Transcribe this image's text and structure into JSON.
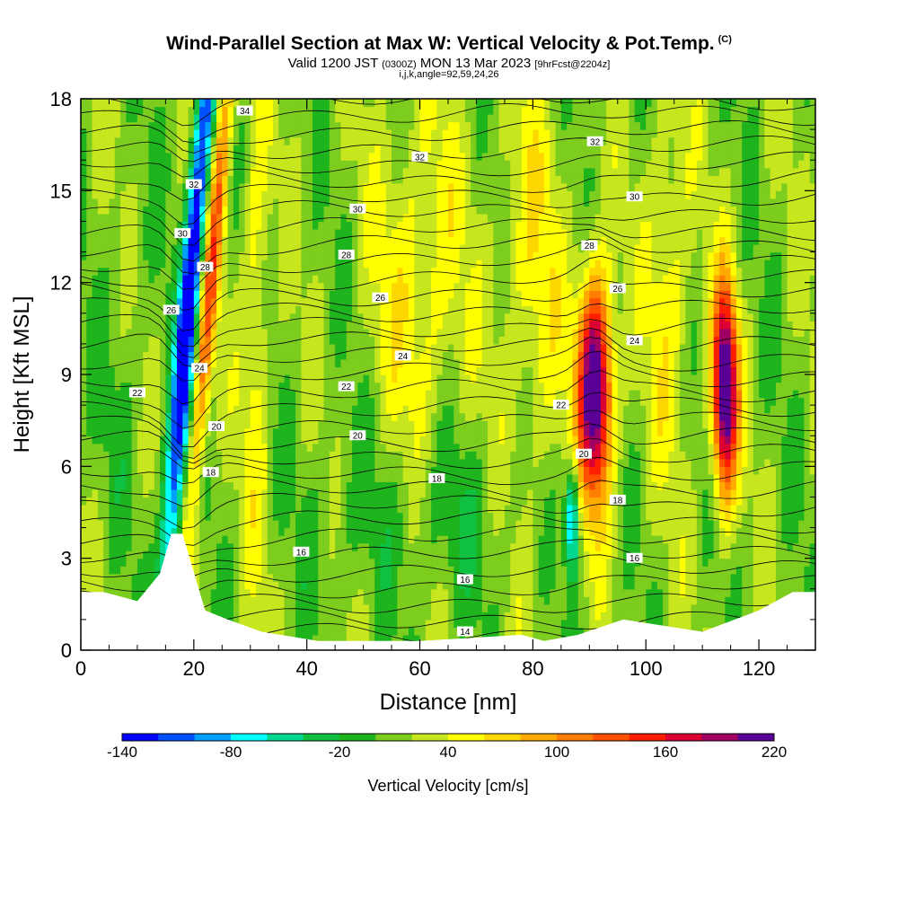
{
  "header": {
    "title": "Wind-Parallel Section at Max W: Vertical Velocity & Pot.Temp.",
    "title_tag": "(C)",
    "valid_main": "Valid 1200 JST",
    "valid_small": "(0300Z)",
    "valid_date": "MON 13 Mar 2023",
    "fcst_small": "[9hrFcst@2204z]",
    "ijk_line": "i,j,k,angle=92,59,24,26"
  },
  "chart_data": {
    "type": "heatmap",
    "xlabel": "Distance [nm]",
    "ylabel": "Height [Kft MSL]",
    "xlim": [
      0,
      130
    ],
    "ylim": [
      0,
      18
    ],
    "x_ticks": [
      "0",
      "20",
      "40",
      "60",
      "80",
      "100",
      "120"
    ],
    "y_ticks": [
      "0",
      "3",
      "6",
      "9",
      "12",
      "15",
      "18"
    ],
    "colorbar": {
      "label": "Vertical Velocity [cm/s]",
      "range": [
        -140,
        220
      ],
      "step": 20,
      "tick_labels": [
        "-140",
        "-80",
        "-20",
        "40",
        "100",
        "160",
        "220"
      ],
      "colors": [
        "#0000ff",
        "#0050ff",
        "#00a0ff",
        "#00ffff",
        "#00d890",
        "#10c040",
        "#1eb41e",
        "#7ccd1e",
        "#c8e61e",
        "#ffff00",
        "#ffd700",
        "#ffaa00",
        "#ff7d00",
        "#ff5000",
        "#ff1e00",
        "#dc0032",
        "#a00064",
        "#5a0096"
      ]
    },
    "field_features": [
      {
        "kind": "downdraft",
        "x_center": 19,
        "min_cm_s": -140
      },
      {
        "kind": "updraft",
        "x_center": 22,
        "max_cm_s": 120
      },
      {
        "kind": "updraft",
        "x_center": 91,
        "max_cm_s": 220
      },
      {
        "kind": "downdraft",
        "x_center": 87,
        "min_cm_s": -80
      },
      {
        "kind": "updraft",
        "x_center": 114,
        "max_cm_s": 220
      }
    ],
    "terrain_height": {
      "x": [
        0,
        4,
        10,
        14,
        16,
        18,
        22,
        26,
        32,
        42,
        60,
        78,
        82,
        88,
        96,
        110,
        120,
        126,
        130
      ],
      "y": [
        1.9,
        1.9,
        1.6,
        2.5,
        3.8,
        3.8,
        1.3,
        1.0,
        0.6,
        0.3,
        0.3,
        0.5,
        0.3,
        0.5,
        1.0,
        0.6,
        1.3,
        1.9,
        1.9
      ]
    },
    "theta_contours": {
      "units": "C",
      "labels": [
        {
          "text": "34",
          "x": 29,
          "y": 17.6
        },
        {
          "text": "32",
          "x": 60,
          "y": 16.1
        },
        {
          "text": "32",
          "x": 91,
          "y": 16.6
        },
        {
          "text": "30",
          "x": 98,
          "y": 14.8
        },
        {
          "text": "32",
          "x": 20,
          "y": 15.2
        },
        {
          "text": "30",
          "x": 49,
          "y": 14.4
        },
        {
          "text": "30",
          "x": 18,
          "y": 13.6
        },
        {
          "text": "28",
          "x": 90,
          "y": 13.2
        },
        {
          "text": "28",
          "x": 47,
          "y": 12.9
        },
        {
          "text": "28",
          "x": 22,
          "y": 12.5
        },
        {
          "text": "26",
          "x": 95,
          "y": 11.8
        },
        {
          "text": "26",
          "x": 53,
          "y": 11.5
        },
        {
          "text": "26",
          "x": 16,
          "y": 11.1
        },
        {
          "text": "24",
          "x": 98,
          "y": 10.1
        },
        {
          "text": "24",
          "x": 57,
          "y": 9.6
        },
        {
          "text": "24",
          "x": 21,
          "y": 9.2
        },
        {
          "text": "22",
          "x": 10,
          "y": 8.4
        },
        {
          "text": "22",
          "x": 47,
          "y": 8.6
        },
        {
          "text": "22",
          "x": 85,
          "y": 8.0
        },
        {
          "text": "20",
          "x": 24,
          "y": 7.3
        },
        {
          "text": "20",
          "x": 49,
          "y": 7.0
        },
        {
          "text": "20",
          "x": 89,
          "y": 6.4
        },
        {
          "text": "18",
          "x": 23,
          "y": 5.8
        },
        {
          "text": "18",
          "x": 63,
          "y": 5.6
        },
        {
          "text": "18",
          "x": 95,
          "y": 4.9
        },
        {
          "text": "16",
          "x": 39,
          "y": 3.2
        },
        {
          "text": "16",
          "x": 98,
          "y": 3.0
        },
        {
          "text": "16",
          "x": 68,
          "y": 2.3
        },
        {
          "text": "14",
          "x": 68,
          "y": 0.6
        }
      ]
    }
  }
}
